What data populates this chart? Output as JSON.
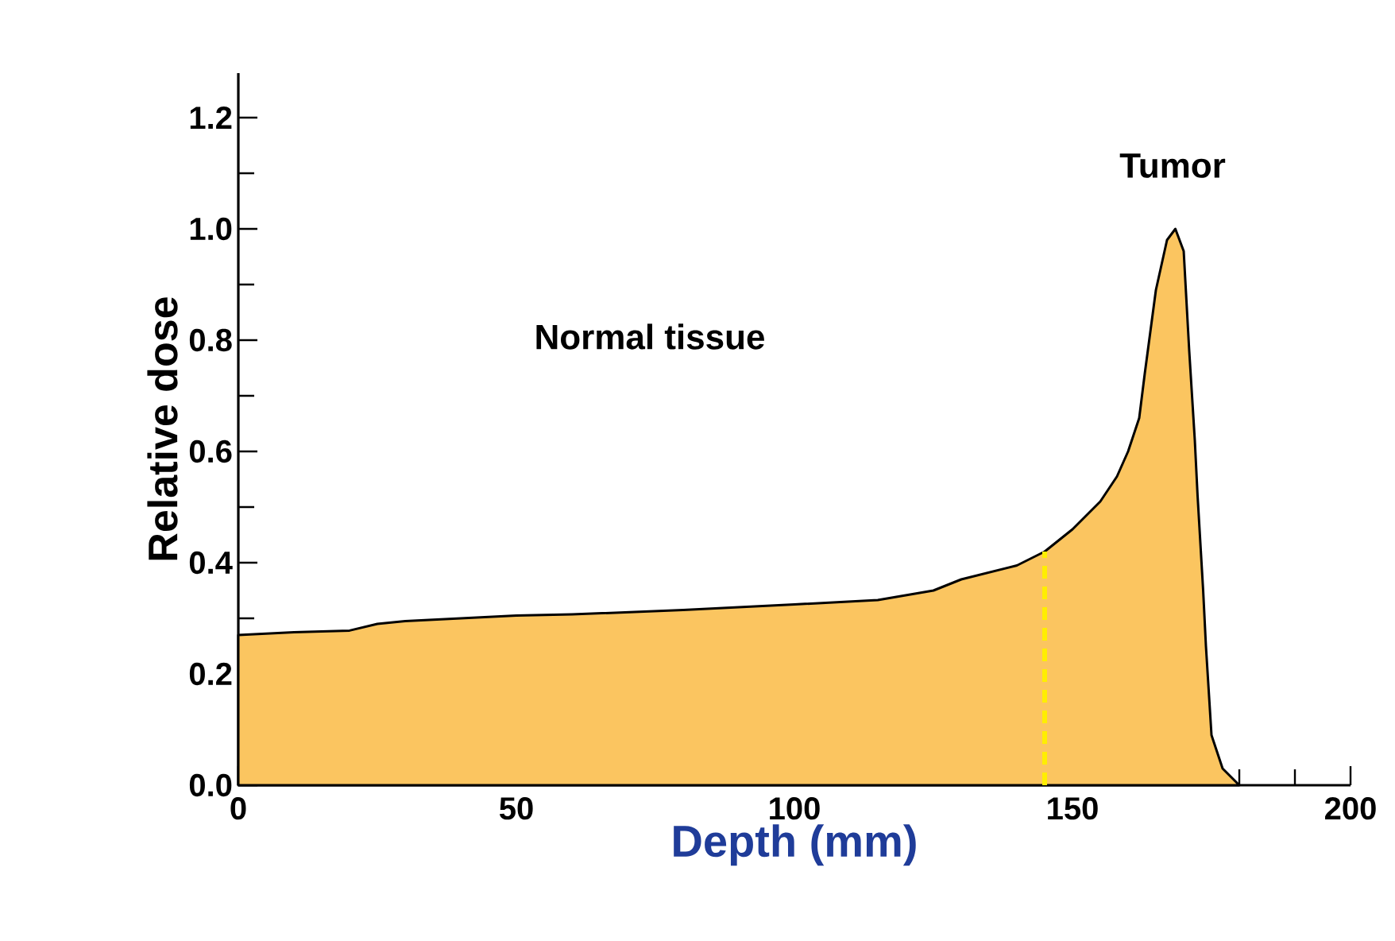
{
  "chart_data": {
    "type": "area",
    "xlabel": "Depth (mm)",
    "ylabel": "Relative dose",
    "annotations": [
      "Normal tissue",
      "Tumor"
    ],
    "series": [
      {
        "color": "#fbc560",
        "x": [
          0,
          10,
          20,
          25,
          30,
          50,
          60,
          80,
          100,
          115,
          125,
          130,
          140,
          145,
          150,
          155,
          158,
          160,
          162,
          163,
          165,
          167,
          168.5,
          170,
          171,
          172,
          172.5,
          173.5,
          174,
          175,
          177,
          180
        ],
        "values": [
          0.27,
          0.275,
          0.278,
          0.29,
          0.295,
          0.305,
          0.307,
          0.315,
          0.325,
          0.333,
          0.35,
          0.37,
          0.395,
          0.42,
          0.46,
          0.51,
          0.555,
          0.6,
          0.66,
          0.74,
          0.89,
          0.98,
          1.0,
          0.96,
          0.78,
          0.62,
          0.52,
          0.35,
          0.25,
          0.09,
          0.03,
          0.0
        ]
      }
    ],
    "xlim": [
      0,
      200
    ],
    "ylim": [
      0,
      1.28
    ],
    "xticks": [
      0,
      50,
      100,
      150,
      200
    ],
    "yticks": [
      {
        "value": 0,
        "label": "0.0"
      },
      {
        "value": 0.2,
        "label": "0.2"
      },
      {
        "value": 0.4,
        "label": "0.4"
      },
      {
        "value": 0.6,
        "label": "0.6"
      },
      {
        "value": 0.8,
        "label": "0.8"
      },
      {
        "value": 1.0,
        "label": "1.0"
      },
      {
        "value": 1.2,
        "label": "1.2"
      }
    ],
    "ref_lines": [
      {
        "axis": "x",
        "value": 145,
        "color": "#ffee00",
        "line_style": "dashed"
      }
    ],
    "grid": false,
    "marker": "none"
  }
}
